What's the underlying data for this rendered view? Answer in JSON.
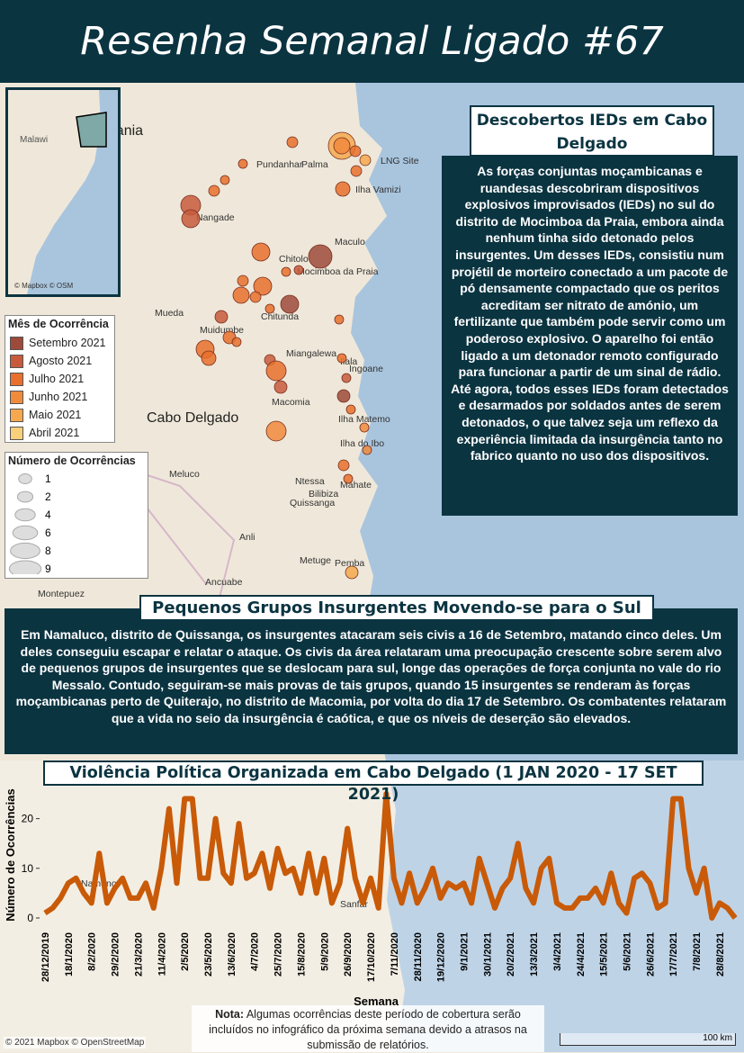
{
  "header": {
    "title": "Resenha Semanal Ligado #67"
  },
  "ied_panel": {
    "title": "Descobertos IEDs em Cabo Delgado",
    "text": "As forças conjuntas moçambicanas e ruandesas descobriram dispositivos explosivos improvisados (IEDs) no sul do distrito de Mocimboa da Praia, embora ainda nenhum tinha sido detonado pelos insurgentes. Um desses IEDs, consistiu num projétil de morteiro conectado a um pacote de pó densamente compactado que os peritos acreditam ser nitrato de amónio, um fertilizante que também pode servir como um poderoso explosivo. O aparelho foi então ligado a um detonador remoto configurado para funcionar a partir de um sinal de rádio. Até agora, todos esses IEDs foram detectados e desarmados por soldados antes de serem detonados, o que talvez seja um reflexo da experiência limitada da insurgência tanto no fabrico quanto no uso dos dispositivos."
  },
  "insurgents_panel": {
    "title": "Pequenos Grupos Insurgentes Movendo-se para o Sul",
    "text": "Em Namaluco, distrito de Quissanga, os insurgentes atacaram seis civis a 16 de Setembro, matando cinco deles. Um deles conseguiu escapar e relatar o ataque. Os civis da área relataram uma preocupação crescente sobre serem alvo de pequenos grupos de insurgentes que se deslocam para sul, longe das operações de força conjunta no vale do rio Messalo. Contudo, seguiram-se mais provas de tais grupos, quando 15 insurgentes se renderam às forças moçambicanas perto de Quiterajo, no distrito de Macomia, por volta do dia 17 de Setembro. Os combatentes relataram que a vida no seio da insurgência é caótica, e que os níveis de deserção são elevados."
  },
  "legend_month": {
    "title": "Mês de Ocorrência",
    "items": [
      {
        "label": "Setembro 2021",
        "color": "#9e4a3a"
      },
      {
        "label": "Agosto 2021",
        "color": "#c75a3c"
      },
      {
        "label": "Julho 2021",
        "color": "#e8702c"
      },
      {
        "label": "Junho 2021",
        "color": "#f08a3c"
      },
      {
        "label": "Maio 2021",
        "color": "#f5a84e"
      },
      {
        "label": "Abril 2021",
        "color": "#f8cf7a"
      }
    ]
  },
  "legend_count": {
    "title": "Número de Ocorrências",
    "items": [
      1,
      2,
      4,
      6,
      8,
      9
    ]
  },
  "inset": {
    "label": "Malawi",
    "credit": "© Mapbox © OSM"
  },
  "map_labels": [
    "Tanzania",
    "Pundanhar",
    "Palma",
    "LNG Site",
    "Ilha Vamizi",
    "Nangade",
    "Maculo",
    "Chitolo",
    "Mocimboa da Praia",
    "Mueda",
    "Chitunda",
    "Muidumbe",
    "Miangalewa",
    "Ilala",
    "Ingoane",
    "Macomia",
    "Cabo Delgado",
    "Ilha Matemo",
    "Ilha do Ibo",
    "Meluco",
    "Quissanga",
    "Ntessa",
    "Mahate",
    "Bilibiza",
    "Anli",
    "Metuge",
    "Pemba",
    "Ancuabe",
    "Montepuez",
    "Namuno",
    "Sanfar"
  ],
  "chart_data": {
    "type": "line",
    "title": "Violência Política Organizada em Cabo Delgado (1 JAN 2020 - 17 SET 2021)",
    "x_label": "Semana",
    "y_label": "Número de Ocorrências",
    "color": "#c85a08",
    "categories": [
      "28/12/2019",
      null,
      null,
      "18/1/2020",
      null,
      null,
      "8/2/2020",
      null,
      null,
      "29/2/2020",
      null,
      null,
      "21/3/2020",
      null,
      null,
      "11/4/2020",
      null,
      null,
      "2/5/2020",
      null,
      null,
      "23/5/2020",
      null,
      null,
      "13/6/2020",
      null,
      null,
      "4/7/2020",
      null,
      null,
      "25/7/2020",
      null,
      null,
      "15/8/2020",
      null,
      null,
      "5/9/2020",
      null,
      null,
      "26/9/2020",
      null,
      null,
      "17/10/2020",
      null,
      null,
      "7/11/2020",
      null,
      null,
      "28/11/2020",
      null,
      null,
      "19/12/2020",
      null,
      null,
      "9/1/2021",
      null,
      null,
      "30/1/2021",
      null,
      null,
      "20/2/2021",
      null,
      null,
      "13/3/2021",
      null,
      null,
      "3/4/2021",
      null,
      null,
      "24/4/2021",
      null,
      null,
      "15/5/2021",
      null,
      null,
      "5/6/2021",
      null,
      null,
      "26/6/2021",
      null,
      null,
      "17/7/2021",
      null,
      null,
      "7/8/2021",
      null,
      null,
      "28/8/2021",
      null,
      null
    ],
    "values": [
      1,
      2,
      4,
      7,
      8,
      5,
      3,
      13,
      3,
      6,
      8,
      4,
      4,
      7,
      2,
      10,
      22,
      7,
      24,
      24,
      8,
      8,
      20,
      9,
      7,
      19,
      8,
      9,
      13,
      6,
      14,
      9,
      10,
      5,
      13,
      5,
      12,
      3,
      7,
      18,
      8,
      3,
      8,
      2,
      25,
      8,
      3,
      9,
      3,
      6,
      10,
      4,
      7,
      6,
      7,
      3,
      12,
      7,
      2,
      6,
      8,
      15,
      6,
      3,
      10,
      12,
      3,
      2,
      2,
      4,
      4,
      6,
      3,
      9,
      3,
      1,
      8,
      9,
      7,
      2,
      3,
      24,
      24,
      10,
      5,
      10,
      0,
      3,
      2,
      0
    ],
    "ylim": [
      -1,
      25
    ],
    "yticks": [
      0,
      10,
      20
    ]
  },
  "note": {
    "bold": "Nota:",
    "text": "Algumas ocorrências deste período de cobertura serão incluídos no infográfico da próxima semana devido a atrasos na submissão de relatórios."
  },
  "attribution": "© 2021 Mapbox © OpenStreetMap",
  "scale": "100 km"
}
